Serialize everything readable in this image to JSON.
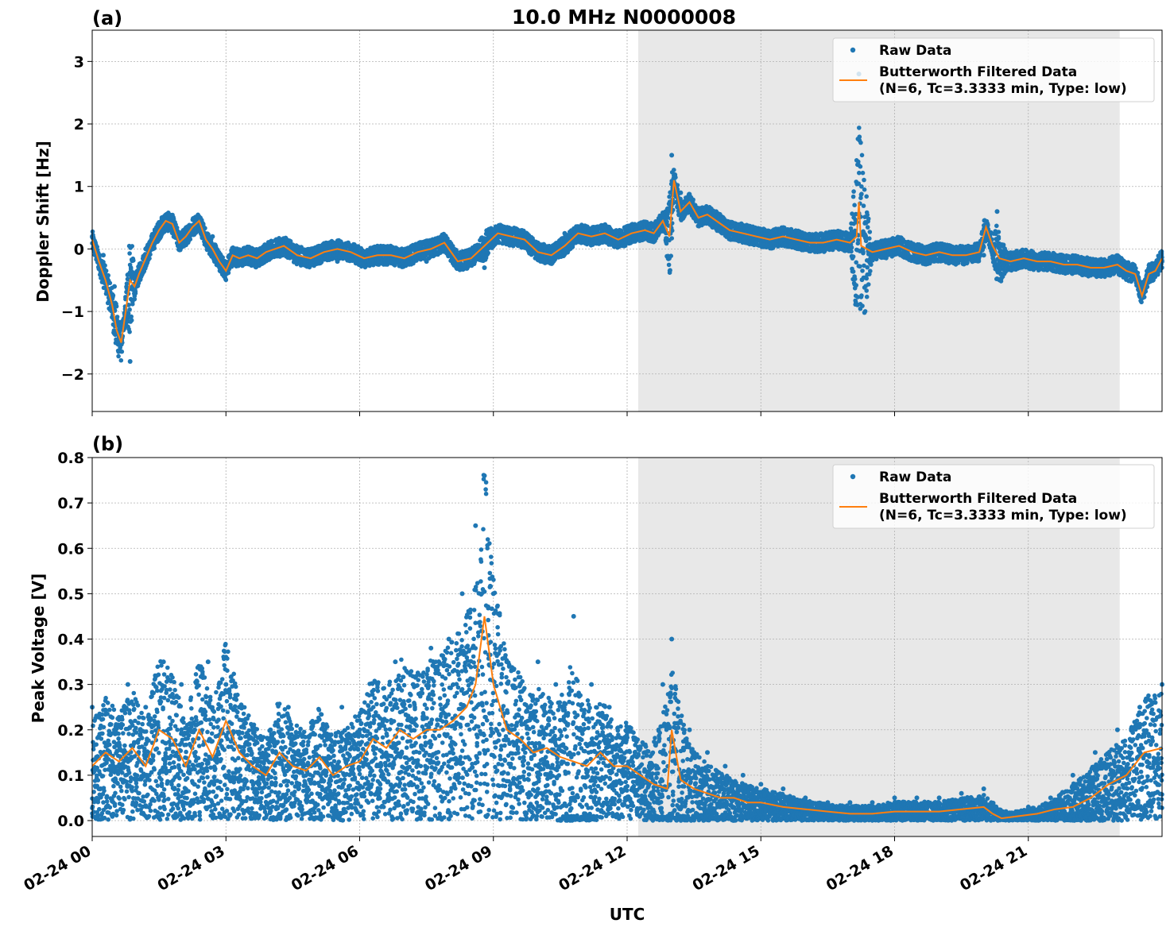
{
  "figure": {
    "title": "10.0 MHz N0000008",
    "xlabel": "UTC"
  },
  "colors": {
    "raw": "#1f77b4",
    "filtered": "#ff7f0e",
    "shade": "#e8e8e8",
    "grid": "#b0b0b0"
  },
  "chart_data": [
    {
      "type": "scatter",
      "panel_label": "(a)",
      "title": "10.0 MHz N0000008",
      "xlabel": "",
      "ylabel": "Doppler Shift [Hz]",
      "x_hours_range": [
        0,
        24
      ],
      "ylim": [
        -2.6,
        3.5
      ],
      "yticks": [
        -2,
        -1,
        0,
        1,
        2,
        3
      ],
      "ytick_labels": [
        "−2",
        "−1",
        "0",
        "1",
        "2",
        "3"
      ],
      "xticks_hours": [
        0,
        3,
        6,
        9,
        12,
        15,
        18,
        21
      ],
      "grid": true,
      "legend_position": "top-right",
      "legend": [
        "Raw Data",
        "Butterworth Filtered Data",
        "(N=6, Tc=3.3333 min, Type: low)"
      ],
      "shaded_region_hours": [
        12.25,
        23.05
      ],
      "series": [
        {
          "name": "Raw Data",
          "kind": "points",
          "x_hours": [
            0,
            0.25,
            0.5,
            0.7,
            0.85,
            1.0,
            1.2,
            1.5,
            1.8,
            2.0,
            2.4,
            2.7,
            3.0,
            3.3,
            3.6,
            4.0,
            4.5,
            5.0,
            5.5,
            6.0,
            6.5,
            7.0,
            7.5,
            8.0,
            8.4,
            8.8,
            9.2,
            9.6,
            10.0,
            10.3,
            10.6,
            11.0,
            11.4,
            11.8,
            12.2,
            12.5,
            12.8,
            13.0,
            13.2,
            13.6,
            14.0,
            14.5,
            15.0,
            15.5,
            16.0,
            16.5,
            17.0,
            17.2,
            17.5,
            18.0,
            18.5,
            19.0,
            19.5,
            20.0,
            20.3,
            20.6,
            21.0,
            21.5,
            22.0,
            22.5,
            23.0,
            23.3,
            23.6,
            24.0
          ],
          "y": [
            0.2,
            -0.1,
            -0.6,
            -1.2,
            -1.8,
            -0.5,
            0.0,
            0.3,
            0.4,
            0.1,
            0.3,
            0.2,
            -0.3,
            -0.1,
            -0.2,
            -0.1,
            0.05,
            0.0,
            -0.2,
            0.0,
            -0.05,
            -0.1,
            -0.2,
            0.0,
            -0.1,
            -0.3,
            0.2,
            0.2,
            -0.1,
            0.0,
            0.25,
            0.2,
            0.15,
            0.1,
            0.3,
            0.2,
            0.4,
            1.5,
            0.9,
            0.6,
            0.4,
            0.3,
            0.3,
            0.15,
            0.2,
            0.1,
            0.2,
            2.8,
            0.0,
            0.05,
            -0.1,
            0.0,
            -0.1,
            -0.1,
            0.6,
            -0.2,
            -0.2,
            -0.2,
            -0.3,
            -0.3,
            -0.3,
            -0.5,
            -0.6,
            -0.2
          ]
        },
        {
          "name": "Butterworth Filtered Data",
          "kind": "line",
          "x_hours": [
            0,
            0.15,
            0.3,
            0.45,
            0.55,
            0.65,
            0.75,
            0.85,
            0.95,
            1.05,
            1.2,
            1.35,
            1.5,
            1.65,
            1.8,
            1.95,
            2.1,
            2.25,
            2.4,
            2.55,
            2.7,
            2.85,
            3.0,
            3.15,
            3.3,
            3.5,
            3.7,
            3.9,
            4.1,
            4.3,
            4.6,
            4.9,
            5.2,
            5.5,
            5.8,
            6.1,
            6.4,
            6.7,
            7.0,
            7.3,
            7.6,
            7.9,
            8.2,
            8.5,
            8.8,
            9.1,
            9.4,
            9.7,
            10.0,
            10.3,
            10.6,
            10.9,
            11.2,
            11.5,
            11.8,
            12.1,
            12.4,
            12.6,
            12.8,
            12.95,
            13.05,
            13.2,
            13.4,
            13.6,
            13.8,
            14.0,
            14.3,
            14.6,
            14.9,
            15.2,
            15.5,
            15.8,
            16.1,
            16.4,
            16.7,
            17.0,
            17.15,
            17.2,
            17.25,
            17.5,
            17.8,
            18.1,
            18.4,
            18.7,
            19.0,
            19.3,
            19.6,
            19.9,
            20.05,
            20.2,
            20.35,
            20.6,
            20.9,
            21.2,
            21.5,
            21.8,
            22.1,
            22.4,
            22.7,
            23.0,
            23.2,
            23.4,
            23.55,
            23.7,
            23.85,
            24.0
          ],
          "y": [
            0.15,
            -0.2,
            -0.5,
            -0.9,
            -1.3,
            -1.5,
            -1.0,
            -0.5,
            -0.6,
            -0.4,
            -0.15,
            0.1,
            0.3,
            0.45,
            0.4,
            0.1,
            0.2,
            0.35,
            0.45,
            0.15,
            0.0,
            -0.2,
            -0.35,
            -0.1,
            -0.15,
            -0.1,
            -0.15,
            -0.05,
            0.0,
            0.05,
            -0.1,
            -0.15,
            -0.05,
            0.0,
            -0.05,
            -0.15,
            -0.1,
            -0.1,
            -0.15,
            -0.05,
            0.0,
            0.1,
            -0.2,
            -0.15,
            0.05,
            0.25,
            0.2,
            0.15,
            -0.05,
            -0.1,
            0.05,
            0.25,
            0.2,
            0.25,
            0.15,
            0.25,
            0.3,
            0.25,
            0.45,
            0.2,
            1.1,
            0.6,
            0.75,
            0.5,
            0.55,
            0.45,
            0.3,
            0.25,
            0.2,
            0.15,
            0.2,
            0.15,
            0.1,
            0.1,
            0.15,
            0.1,
            0.2,
            0.75,
            0.05,
            -0.05,
            0.0,
            0.05,
            -0.05,
            -0.1,
            -0.05,
            -0.1,
            -0.1,
            -0.05,
            0.35,
            0.05,
            -0.15,
            -0.2,
            -0.15,
            -0.2,
            -0.2,
            -0.25,
            -0.25,
            -0.3,
            -0.3,
            -0.25,
            -0.35,
            -0.4,
            -0.75,
            -0.4,
            -0.35,
            -0.15
          ]
        }
      ]
    },
    {
      "type": "scatter",
      "panel_label": "(b)",
      "title": "",
      "xlabel": "UTC",
      "ylabel": "Peak Voltage [V]",
      "x_hours_range": [
        0,
        24
      ],
      "ylim": [
        -0.035,
        0.8
      ],
      "yticks": [
        0.0,
        0.1,
        0.2,
        0.3,
        0.4,
        0.5,
        0.6,
        0.7,
        0.8
      ],
      "ytick_labels": [
        "0.0",
        "0.1",
        "0.2",
        "0.3",
        "0.4",
        "0.5",
        "0.6",
        "0.7",
        "0.8"
      ],
      "xticks_hours": [
        0,
        3,
        6,
        9,
        12,
        15,
        18,
        21
      ],
      "xtick_labels": [
        "02-24 00",
        "02-24 03",
        "02-24 06",
        "02-24 09",
        "02-24 12",
        "02-24 15",
        "02-24 18",
        "02-24 21"
      ],
      "grid": true,
      "legend_position": "top-right",
      "legend": [
        "Raw Data",
        "Butterworth Filtered Data",
        "(N=6, Tc=3.3333 min, Type: low)"
      ],
      "shaded_region_hours": [
        12.25,
        23.05
      ],
      "series": [
        {
          "name": "Raw Data",
          "kind": "points",
          "x_hours": [
            0,
            0.5,
            0.8,
            1.2,
            1.6,
            2.0,
            2.3,
            2.6,
            3.0,
            3.3,
            3.6,
            4.0,
            4.4,
            4.8,
            5.2,
            5.6,
            6.0,
            6.4,
            6.8,
            7.2,
            7.6,
            8.0,
            8.3,
            8.6,
            8.8,
            9.0,
            9.3,
            9.6,
            10.0,
            10.4,
            10.8,
            11.2,
            11.6,
            12.0,
            12.4,
            12.8,
            13.0,
            13.4,
            13.8,
            14.2,
            14.6,
            15.0,
            15.5,
            16.0,
            16.5,
            17.0,
            17.5,
            18.0,
            18.5,
            19.0,
            19.5,
            20.0,
            20.5,
            21.0,
            21.5,
            22.0,
            22.5,
            23.0,
            23.5,
            24.0
          ],
          "y": [
            0.25,
            0.2,
            0.3,
            0.25,
            0.35,
            0.3,
            0.2,
            0.35,
            0.3,
            0.25,
            0.2,
            0.2,
            0.25,
            0.15,
            0.2,
            0.25,
            0.2,
            0.3,
            0.35,
            0.3,
            0.38,
            0.4,
            0.5,
            0.65,
            0.76,
            0.5,
            0.35,
            0.3,
            0.35,
            0.3,
            0.45,
            0.3,
            0.25,
            0.2,
            0.15,
            0.3,
            0.4,
            0.2,
            0.15,
            0.12,
            0.1,
            0.08,
            0.07,
            0.05,
            0.04,
            0.04,
            0.04,
            0.05,
            0.05,
            0.05,
            0.06,
            0.07,
            0.02,
            0.03,
            0.05,
            0.1,
            0.15,
            0.2,
            0.25,
            0.3
          ]
        },
        {
          "name": "Butterworth Filtered Data",
          "kind": "line",
          "x_hours": [
            0,
            0.3,
            0.6,
            0.9,
            1.2,
            1.5,
            1.8,
            2.1,
            2.4,
            2.7,
            3.0,
            3.3,
            3.6,
            3.9,
            4.2,
            4.5,
            4.8,
            5.1,
            5.4,
            5.7,
            6.0,
            6.3,
            6.6,
            6.9,
            7.2,
            7.5,
            7.8,
            8.1,
            8.4,
            8.6,
            8.8,
            9.0,
            9.3,
            9.6,
            9.9,
            10.2,
            10.5,
            10.8,
            11.1,
            11.4,
            11.7,
            12.0,
            12.3,
            12.6,
            12.9,
            13.0,
            13.2,
            13.5,
            13.8,
            14.1,
            14.4,
            14.7,
            15.0,
            15.5,
            16.0,
            16.5,
            17.0,
            17.5,
            18.0,
            18.5,
            19.0,
            19.5,
            20.0,
            20.2,
            20.4,
            20.8,
            21.2,
            21.6,
            22.0,
            22.4,
            22.8,
            23.2,
            23.6,
            24.0
          ],
          "y": [
            0.12,
            0.15,
            0.13,
            0.16,
            0.12,
            0.2,
            0.18,
            0.12,
            0.2,
            0.14,
            0.22,
            0.15,
            0.12,
            0.1,
            0.15,
            0.12,
            0.11,
            0.14,
            0.1,
            0.12,
            0.13,
            0.18,
            0.16,
            0.2,
            0.18,
            0.2,
            0.2,
            0.22,
            0.25,
            0.3,
            0.45,
            0.3,
            0.2,
            0.18,
            0.15,
            0.16,
            0.14,
            0.13,
            0.12,
            0.15,
            0.12,
            0.12,
            0.1,
            0.08,
            0.07,
            0.2,
            0.09,
            0.07,
            0.06,
            0.05,
            0.05,
            0.04,
            0.04,
            0.03,
            0.025,
            0.02,
            0.015,
            0.015,
            0.02,
            0.02,
            0.02,
            0.025,
            0.03,
            0.015,
            0.005,
            0.01,
            0.015,
            0.025,
            0.03,
            0.05,
            0.08,
            0.1,
            0.15,
            0.16
          ]
        }
      ]
    }
  ]
}
